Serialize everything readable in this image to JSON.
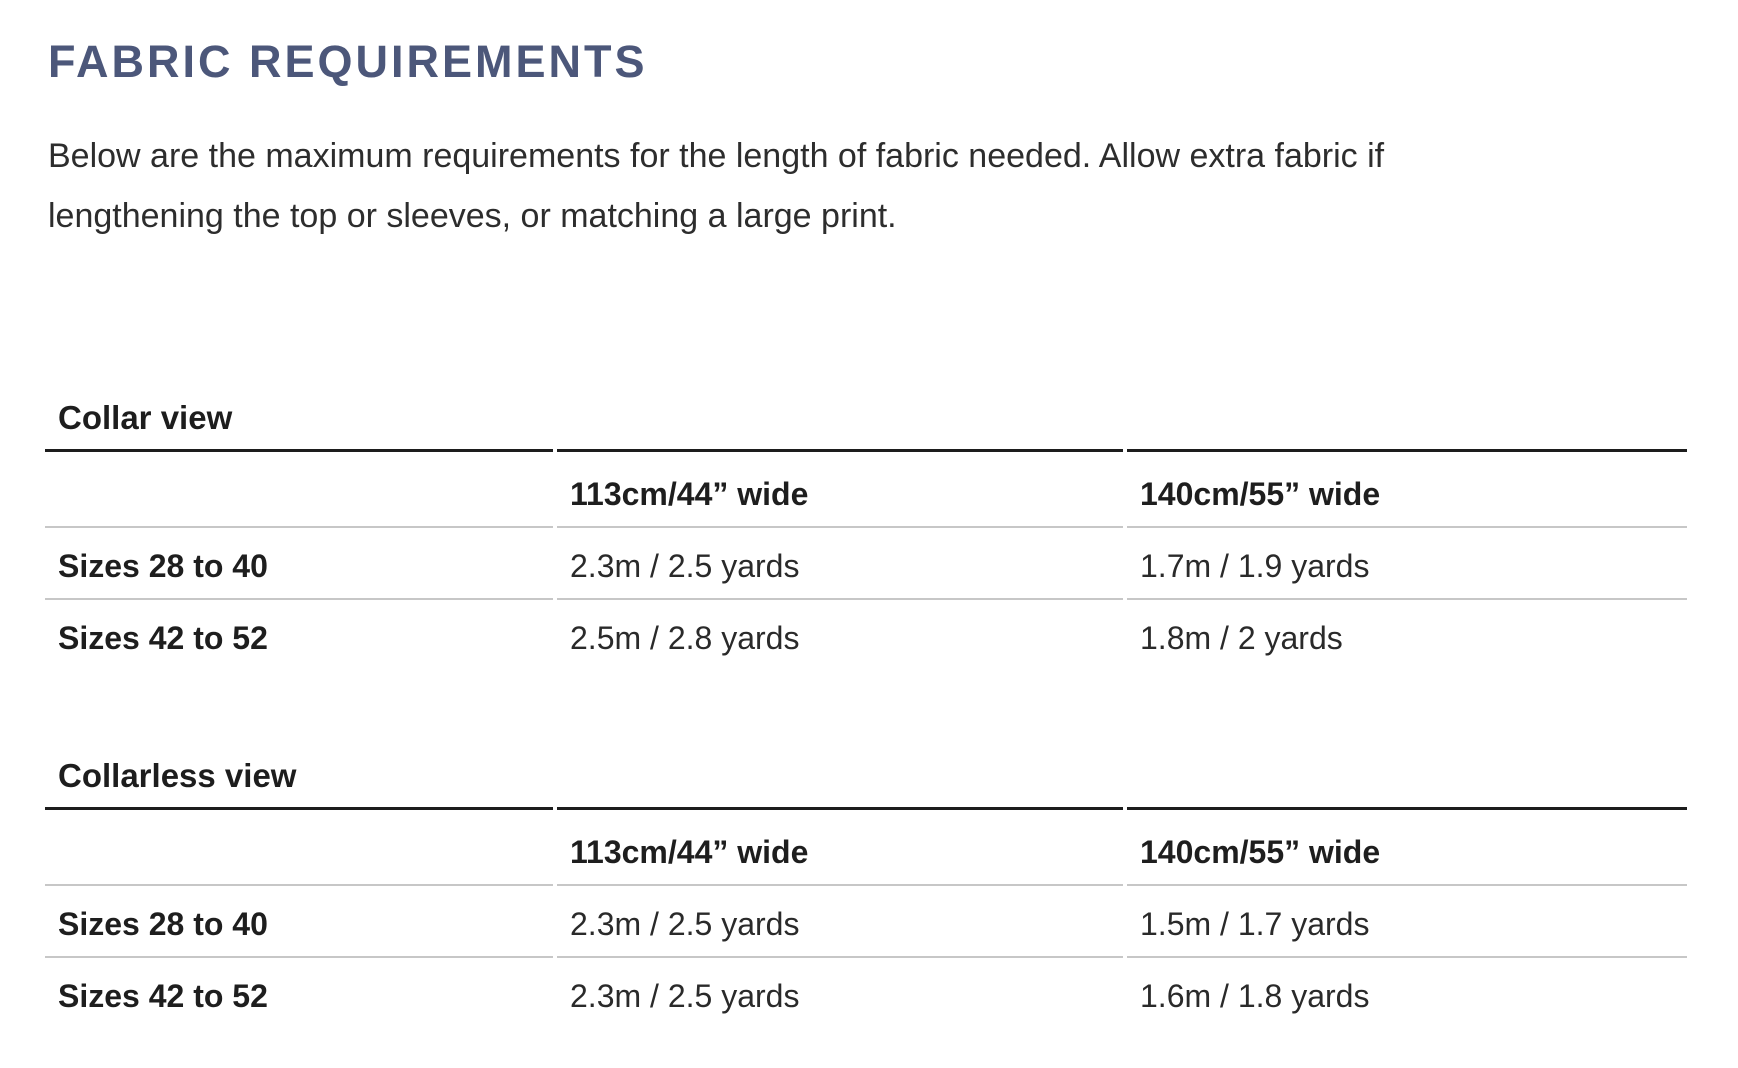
{
  "page": {
    "title": "FABRIC REQUIREMENTS",
    "intro": "Below are the maximum requirements for the length of fabric needed. Allow extra fabric if lengthening the top or sleeves, or matching a large print."
  },
  "colors": {
    "heading": "#4c577a",
    "body_text": "#2d2d2d",
    "rule_dark": "#1d1d1d",
    "rule_light": "#c7c7c7"
  },
  "tables": [
    {
      "caption": "Collar view",
      "columns": [
        "",
        "113cm/44” wide",
        "140cm/55” wide"
      ],
      "rows": [
        {
          "label": "Sizes 28 to 40",
          "values": [
            "2.3m / 2.5 yards",
            "1.7m / 1.9 yards"
          ]
        },
        {
          "label": "Sizes 42 to 52",
          "values": [
            "2.5m / 2.8 yards",
            "1.8m / 2 yards"
          ]
        }
      ]
    },
    {
      "caption": "Collarless view",
      "columns": [
        "",
        "113cm/44” wide",
        "140cm/55” wide"
      ],
      "rows": [
        {
          "label": "Sizes 28 to 40",
          "values": [
            "2.3m / 2.5 yards",
            "1.5m / 1.7 yards"
          ]
        },
        {
          "label": "Sizes 42 to 52",
          "values": [
            "2.3m / 2.5 yards",
            "1.6m / 1.8 yards"
          ]
        }
      ]
    }
  ]
}
